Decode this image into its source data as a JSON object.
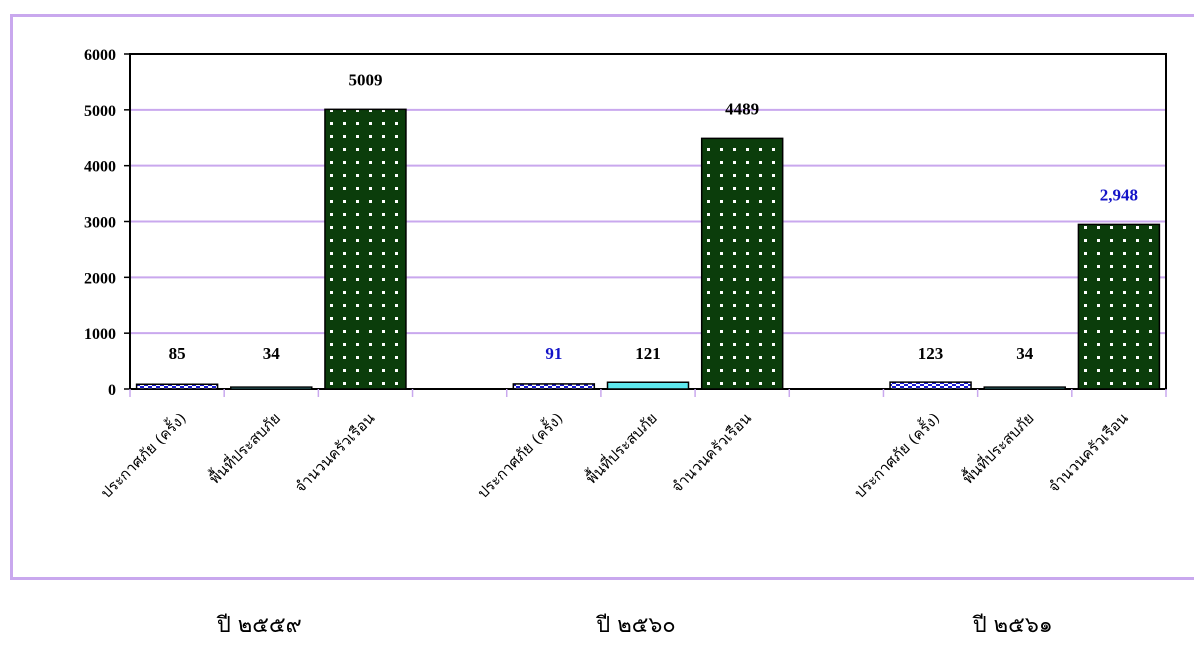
{
  "chart_data": {
    "type": "bar",
    "title": "",
    "xlabel": "",
    "ylabel": "",
    "ylim": [
      0,
      6000
    ],
    "yticks": [
      "0",
      "1000",
      "2000",
      "3000",
      "4000",
      "5000",
      "6000"
    ],
    "grid": true,
    "groups": [
      {
        "year_label": "ปี ๒๕๕๙",
        "bars": [
          {
            "category": "ประกาศภัย (ครั้ง)",
            "value": 85,
            "label": "85",
            "pattern": "checker",
            "label_color": "#000000"
          },
          {
            "category": "พื้นที่ประสบภัย",
            "value": 34,
            "label": "34",
            "pattern": "plain-cyan",
            "label_color": "#000000"
          },
          {
            "category": "จำนวนครัวเรือน",
            "value": 5009,
            "label": "5009",
            "pattern": "dots",
            "label_color": "#000000"
          }
        ]
      },
      {
        "year_label": "ปี ๒๕๖๐",
        "bars": [
          {
            "category": "ประกาศภัย (ครั้ง)",
            "value": 91,
            "label": "91",
            "pattern": "checker",
            "label_color": "#1414c8"
          },
          {
            "category": "พื้นที่ประสบภัย",
            "value": 121,
            "label": "121",
            "pattern": "plain-cyan",
            "label_color": "#000000"
          },
          {
            "category": "จำนวนครัวเรือน",
            "value": 4489,
            "label": "4489",
            "pattern": "dots",
            "label_color": "#000000"
          }
        ]
      },
      {
        "year_label": "ปี ๒๕๖๑",
        "bars": [
          {
            "category": "ประกาศภัย (ครั้ง)",
            "value": 123,
            "label": "123",
            "pattern": "checker",
            "label_color": "#000000"
          },
          {
            "category": "พื้นที่ประสบภัย",
            "value": 34,
            "label": "34",
            "pattern": "plain-cyan",
            "label_color": "#000000"
          },
          {
            "category": "จำนวนครัวเรือน",
            "value": 2948,
            "label": "2,948",
            "pattern": "dots",
            "label_color": "#1414c8"
          }
        ]
      }
    ],
    "colors": {
      "grid": "#c9a8ee",
      "frame": "#c9a8ee",
      "dots_fill": "#0b3d0b",
      "checker_a": "#1a1ad0",
      "checker_b": "#ffffff",
      "cyan": "#5ee8ee"
    }
  }
}
